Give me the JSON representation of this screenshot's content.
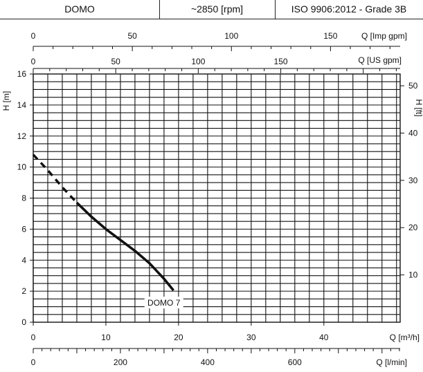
{
  "header": {
    "model": "DOMO",
    "speed": "~2850 [rpm]",
    "standard": "ISO 9906:2012 - Grade 3B"
  },
  "chart_data": {
    "type": "line",
    "title": "",
    "xlabel": "Q [m³/h]",
    "ylabel": "H [m]",
    "xlim": [
      0,
      50.5
    ],
    "ylim": [
      0,
      16
    ],
    "grid": true,
    "x_ticks": [
      0,
      10,
      20,
      30,
      40
    ],
    "y_ticks": [
      0,
      2,
      4,
      6,
      8,
      10,
      12,
      14,
      16
    ],
    "secondary_axes": {
      "right": {
        "label": "H [ft]",
        "unit_factor": 3.28084,
        "ticks": [
          10,
          20,
          30,
          40,
          50
        ]
      },
      "top_us": {
        "label": "Q [US gpm]",
        "unit_factor": 4.40287,
        "ticks": [
          0,
          50,
          100,
          150
        ]
      },
      "top_imp": {
        "label": "Q [Imp gpm]",
        "unit_factor": 3.66614,
        "ticks": [
          0,
          50,
          100,
          150
        ]
      },
      "bottom_lmin": {
        "label": "Q [l/min]",
        "unit_factor": 16.6667,
        "ticks": [
          0,
          200,
          400,
          600
        ]
      }
    },
    "series": [
      {
        "name": "DOMO 7",
        "label_x": 17.6,
        "label_y": 1.2,
        "dashed_segment": {
          "x": [
            0,
            2,
            4,
            6
          ],
          "y": [
            10.8,
            9.8,
            8.7,
            7.7
          ]
        },
        "solid_segment": {
          "x": [
            6,
            8,
            10,
            12,
            14,
            16,
            18,
            19.3
          ],
          "y": [
            7.7,
            6.8,
            6.0,
            5.3,
            4.6,
            3.8,
            2.8,
            2.05
          ]
        }
      }
    ]
  }
}
